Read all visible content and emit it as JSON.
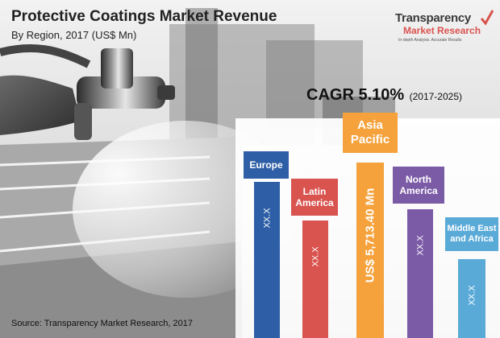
{
  "header": {
    "title": "Protective Coatings Market Revenue",
    "subtitle": "By Region, 2017 (US$ Mn)"
  },
  "logo": {
    "line1": "Transparency",
    "line2": "Market Research",
    "tagline": "In-depth Analysis. Accurate Results"
  },
  "cagr": {
    "value": "CAGR 5.10%",
    "range": "(2017-2025)"
  },
  "source": "Source: Transparency Market Research, 2017",
  "colors": {
    "europe": "#2e5fa6",
    "latin_america": "#d9534f",
    "asia_pacific": "#f5a23c",
    "north_america": "#7b5aa6",
    "mea": "#5aaad8"
  },
  "chart_data": {
    "type": "bar",
    "title": "Protective Coatings Market Revenue",
    "subtitle": "By Region, 2017 (US$ Mn)",
    "categories": [
      "Europe",
      "Latin America",
      "Asia Pacific",
      "North America",
      "Middle East and Africa"
    ],
    "values": [
      null,
      null,
      5713.4,
      null,
      null
    ],
    "value_labels": [
      "XX.X",
      "XX.X",
      "US$ 5,713.40 Mn",
      "XX.X",
      "XX.X"
    ],
    "header_labels": [
      "Europe",
      "Latin\nAmerica",
      "Asia\nPacific",
      "North\nAmerica",
      "Middle East\nand Africa"
    ],
    "colors": [
      "#2e5fa6",
      "#d9534f",
      "#f5a23c",
      "#7b5aa6",
      "#5aaad8"
    ],
    "xlabel": "",
    "ylabel": "",
    "grid": false
  }
}
